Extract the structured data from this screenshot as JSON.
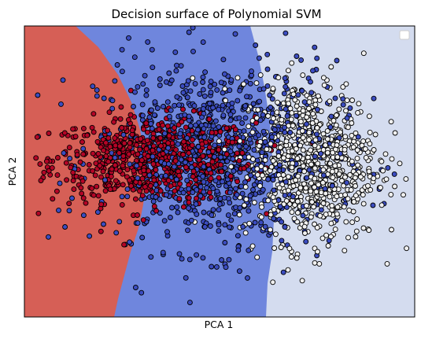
{
  "chart_data": {
    "type": "scatter",
    "title": "Decision surface of Polynomial SVM",
    "xlabel": "PCA 1",
    "ylabel": "PCA 2",
    "xlim": [
      -4.0,
      4.5
    ],
    "ylim": [
      -3.2,
      3.0
    ],
    "xticks": [],
    "yticks": [],
    "legend": {
      "placement": "top-right",
      "entries": []
    },
    "background_regions": [
      {
        "class": "red",
        "color": "#d65f56",
        "side": "left of first boundary"
      },
      {
        "class": "blue",
        "color": "#6f86dd",
        "side": "between boundaries"
      },
      {
        "class": "white",
        "color": "#d4dcef",
        "side": "right of second boundary"
      }
    ],
    "series": [
      {
        "color": "#b40426",
        "center": [
          -1.2,
          0.15
        ],
        "spread": [
          1.1,
          0.45
        ],
        "count": 700
      },
      {
        "color": "#3b4cc0",
        "center": [
          0.2,
          0.25
        ],
        "spread": [
          1.3,
          1.0
        ],
        "count": 900
      },
      {
        "color": "#f0f0f0",
        "center": [
          2.2,
          0.1
        ],
        "spread": [
          0.75,
          0.85
        ],
        "count": 800
      }
    ]
  }
}
